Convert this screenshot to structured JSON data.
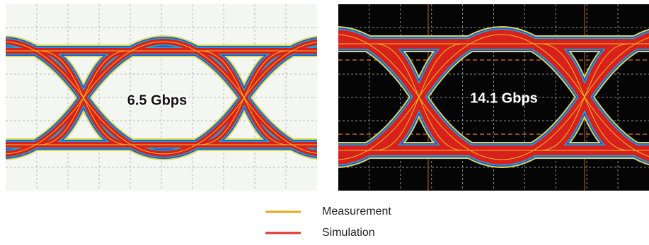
{
  "panels": [
    {
      "label": "6.5 Gbps"
    },
    {
      "label": "14.1 Gbps"
    }
  ],
  "legend": [
    {
      "label": "Measurement",
      "color": "#e8a81c"
    },
    {
      "label": "Simulation",
      "color": "#e0342a"
    }
  ]
}
